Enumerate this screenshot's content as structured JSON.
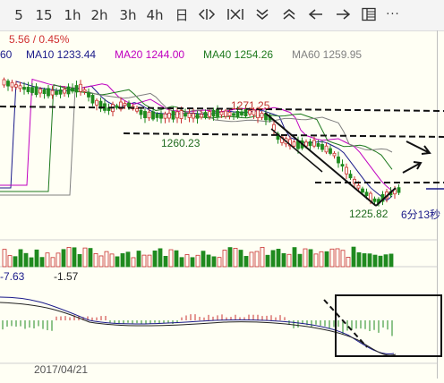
{
  "toolbar": {
    "periods": [
      "5",
      "15",
      "1h",
      "2h",
      "3h",
      "4h",
      "日"
    ],
    "tools": [
      {
        "name": "zoom-in-out-icon"
      },
      {
        "name": "zoom-fit-icon"
      },
      {
        "name": "chevron-down-double-icon"
      },
      {
        "name": "chevron-up-double-icon"
      },
      {
        "name": "arrow-left-icon"
      },
      {
        "name": "arrow-right-icon"
      },
      {
        "name": "layout-panel-icon"
      },
      {
        "name": "more-icon"
      }
    ],
    "more_label": "···"
  },
  "quote": {
    "change": "5.56 / 0.45%",
    "color": "#d03030"
  },
  "ma": {
    "first": "60",
    "ma10": "MA10 1233.44",
    "ma20": "MA20 1244.00",
    "ma40": "MA40 1254.26",
    "ma60": "MA60 1259.95",
    "colors": {
      "ma10": "#1a1a8a",
      "ma20": "#c000c0",
      "ma40": "#1f7a1f",
      "ma60": "#808080"
    }
  },
  "annotations": {
    "high_label": "1271.25",
    "mid_label": "1260.23",
    "low_label": "1225.82",
    "timer": "6分13秒"
  },
  "macd": {
    "val1": "-7.63",
    "val2": "-1.57"
  },
  "date_label": "2017/04/21"
}
